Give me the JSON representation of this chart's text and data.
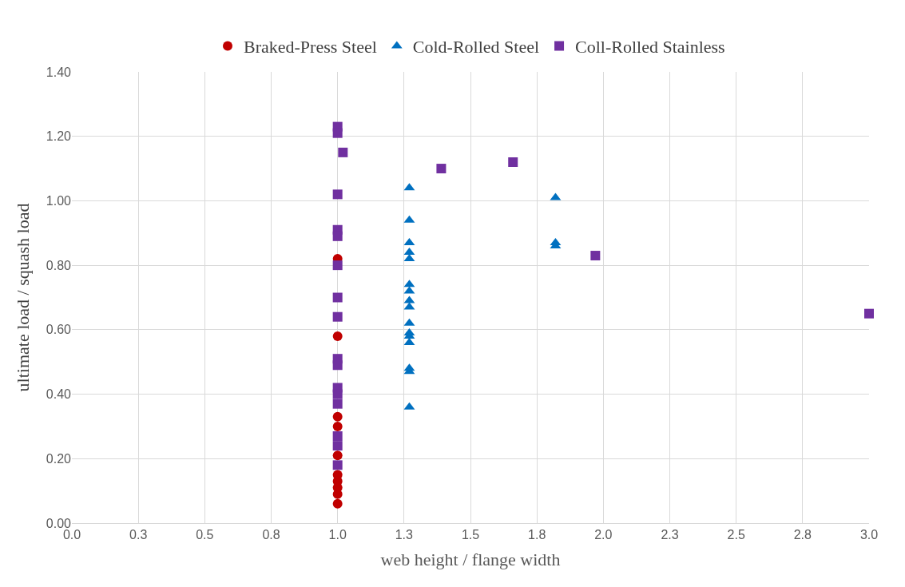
{
  "chart_data": {
    "type": "scatter",
    "xlabel": "web height / flange width",
    "ylabel": "ultimate load / squash load",
    "series": [
      {
        "name": "Braked-Press Steel",
        "color": "#c00000",
        "marker": "circle",
        "x": [
          1.0,
          1.0,
          1.0,
          1.0,
          1.0,
          1.0,
          1.0,
          1.0,
          1.0,
          1.0
        ],
        "values": [
          0.06,
          0.09,
          0.11,
          0.13,
          0.15,
          0.21,
          0.3,
          0.33,
          0.58,
          0.82
        ]
      },
      {
        "name": "Cold-Rolled Steel",
        "color": "#0070c0",
        "marker": "triangle",
        "x": [
          1.27,
          1.27,
          1.27,
          1.27,
          1.27,
          1.27,
          1.27,
          1.27,
          1.27,
          1.27,
          1.27,
          1.27,
          1.27,
          1.27,
          1.27,
          1.27,
          1.82,
          1.82,
          1.82
        ],
        "values": [
          0.36,
          0.47,
          0.48,
          0.56,
          0.58,
          0.59,
          0.62,
          0.67,
          0.69,
          0.72,
          0.74,
          0.82,
          0.84,
          0.87,
          0.94,
          1.04,
          1.01,
          0.87,
          0.86
        ]
      },
      {
        "name": "Coll-Rolled Stainless",
        "color": "#7030a0",
        "marker": "square",
        "x": [
          1.0,
          1.0,
          1.0,
          1.0,
          1.0,
          1.0,
          1.0,
          1.0,
          1.0,
          1.0,
          1.0,
          1.0,
          1.0,
          1.0,
          1.0,
          1.0,
          1.02,
          1.39,
          1.66,
          1.97,
          3.0
        ],
        "values": [
          1.23,
          1.21,
          1.02,
          0.91,
          0.89,
          0.8,
          0.7,
          0.64,
          0.51,
          0.49,
          0.42,
          0.4,
          0.37,
          0.27,
          0.24,
          0.18,
          1.15,
          1.1,
          1.12,
          0.83,
          0.65
        ]
      }
    ],
    "xlim": [
      0,
      3.0
    ],
    "xticks": [
      {
        "value": 0,
        "label": "0.0"
      },
      {
        "value": 0.25,
        "label": "0.3"
      },
      {
        "value": 0.5,
        "label": "0.5"
      },
      {
        "value": 0.75,
        "label": "0.8"
      },
      {
        "value": 1.0,
        "label": "1.0"
      },
      {
        "value": 1.25,
        "label": "1.3"
      },
      {
        "value": 1.5,
        "label": "1.5"
      },
      {
        "value": 1.75,
        "label": "1.8"
      },
      {
        "value": 2.0,
        "label": "2.0"
      },
      {
        "value": 2.25,
        "label": "2.3"
      },
      {
        "value": 2.5,
        "label": "2.5"
      },
      {
        "value": 2.75,
        "label": "2.8"
      },
      {
        "value": 3.0,
        "label": "3.0"
      }
    ],
    "ylim": [
      0,
      1.4
    ],
    "yticks": [
      {
        "value": 0,
        "label": "0.00"
      },
      {
        "value": 0.2,
        "label": "0.20"
      },
      {
        "value": 0.4,
        "label": "0.40"
      },
      {
        "value": 0.6,
        "label": "0.60"
      },
      {
        "value": 0.8,
        "label": "0.80"
      },
      {
        "value": 1.0,
        "label": "1.00"
      },
      {
        "value": 1.2,
        "label": "1.20"
      },
      {
        "value": 1.4,
        "label": "1.40"
      }
    ],
    "grid": true,
    "legend": "top"
  }
}
